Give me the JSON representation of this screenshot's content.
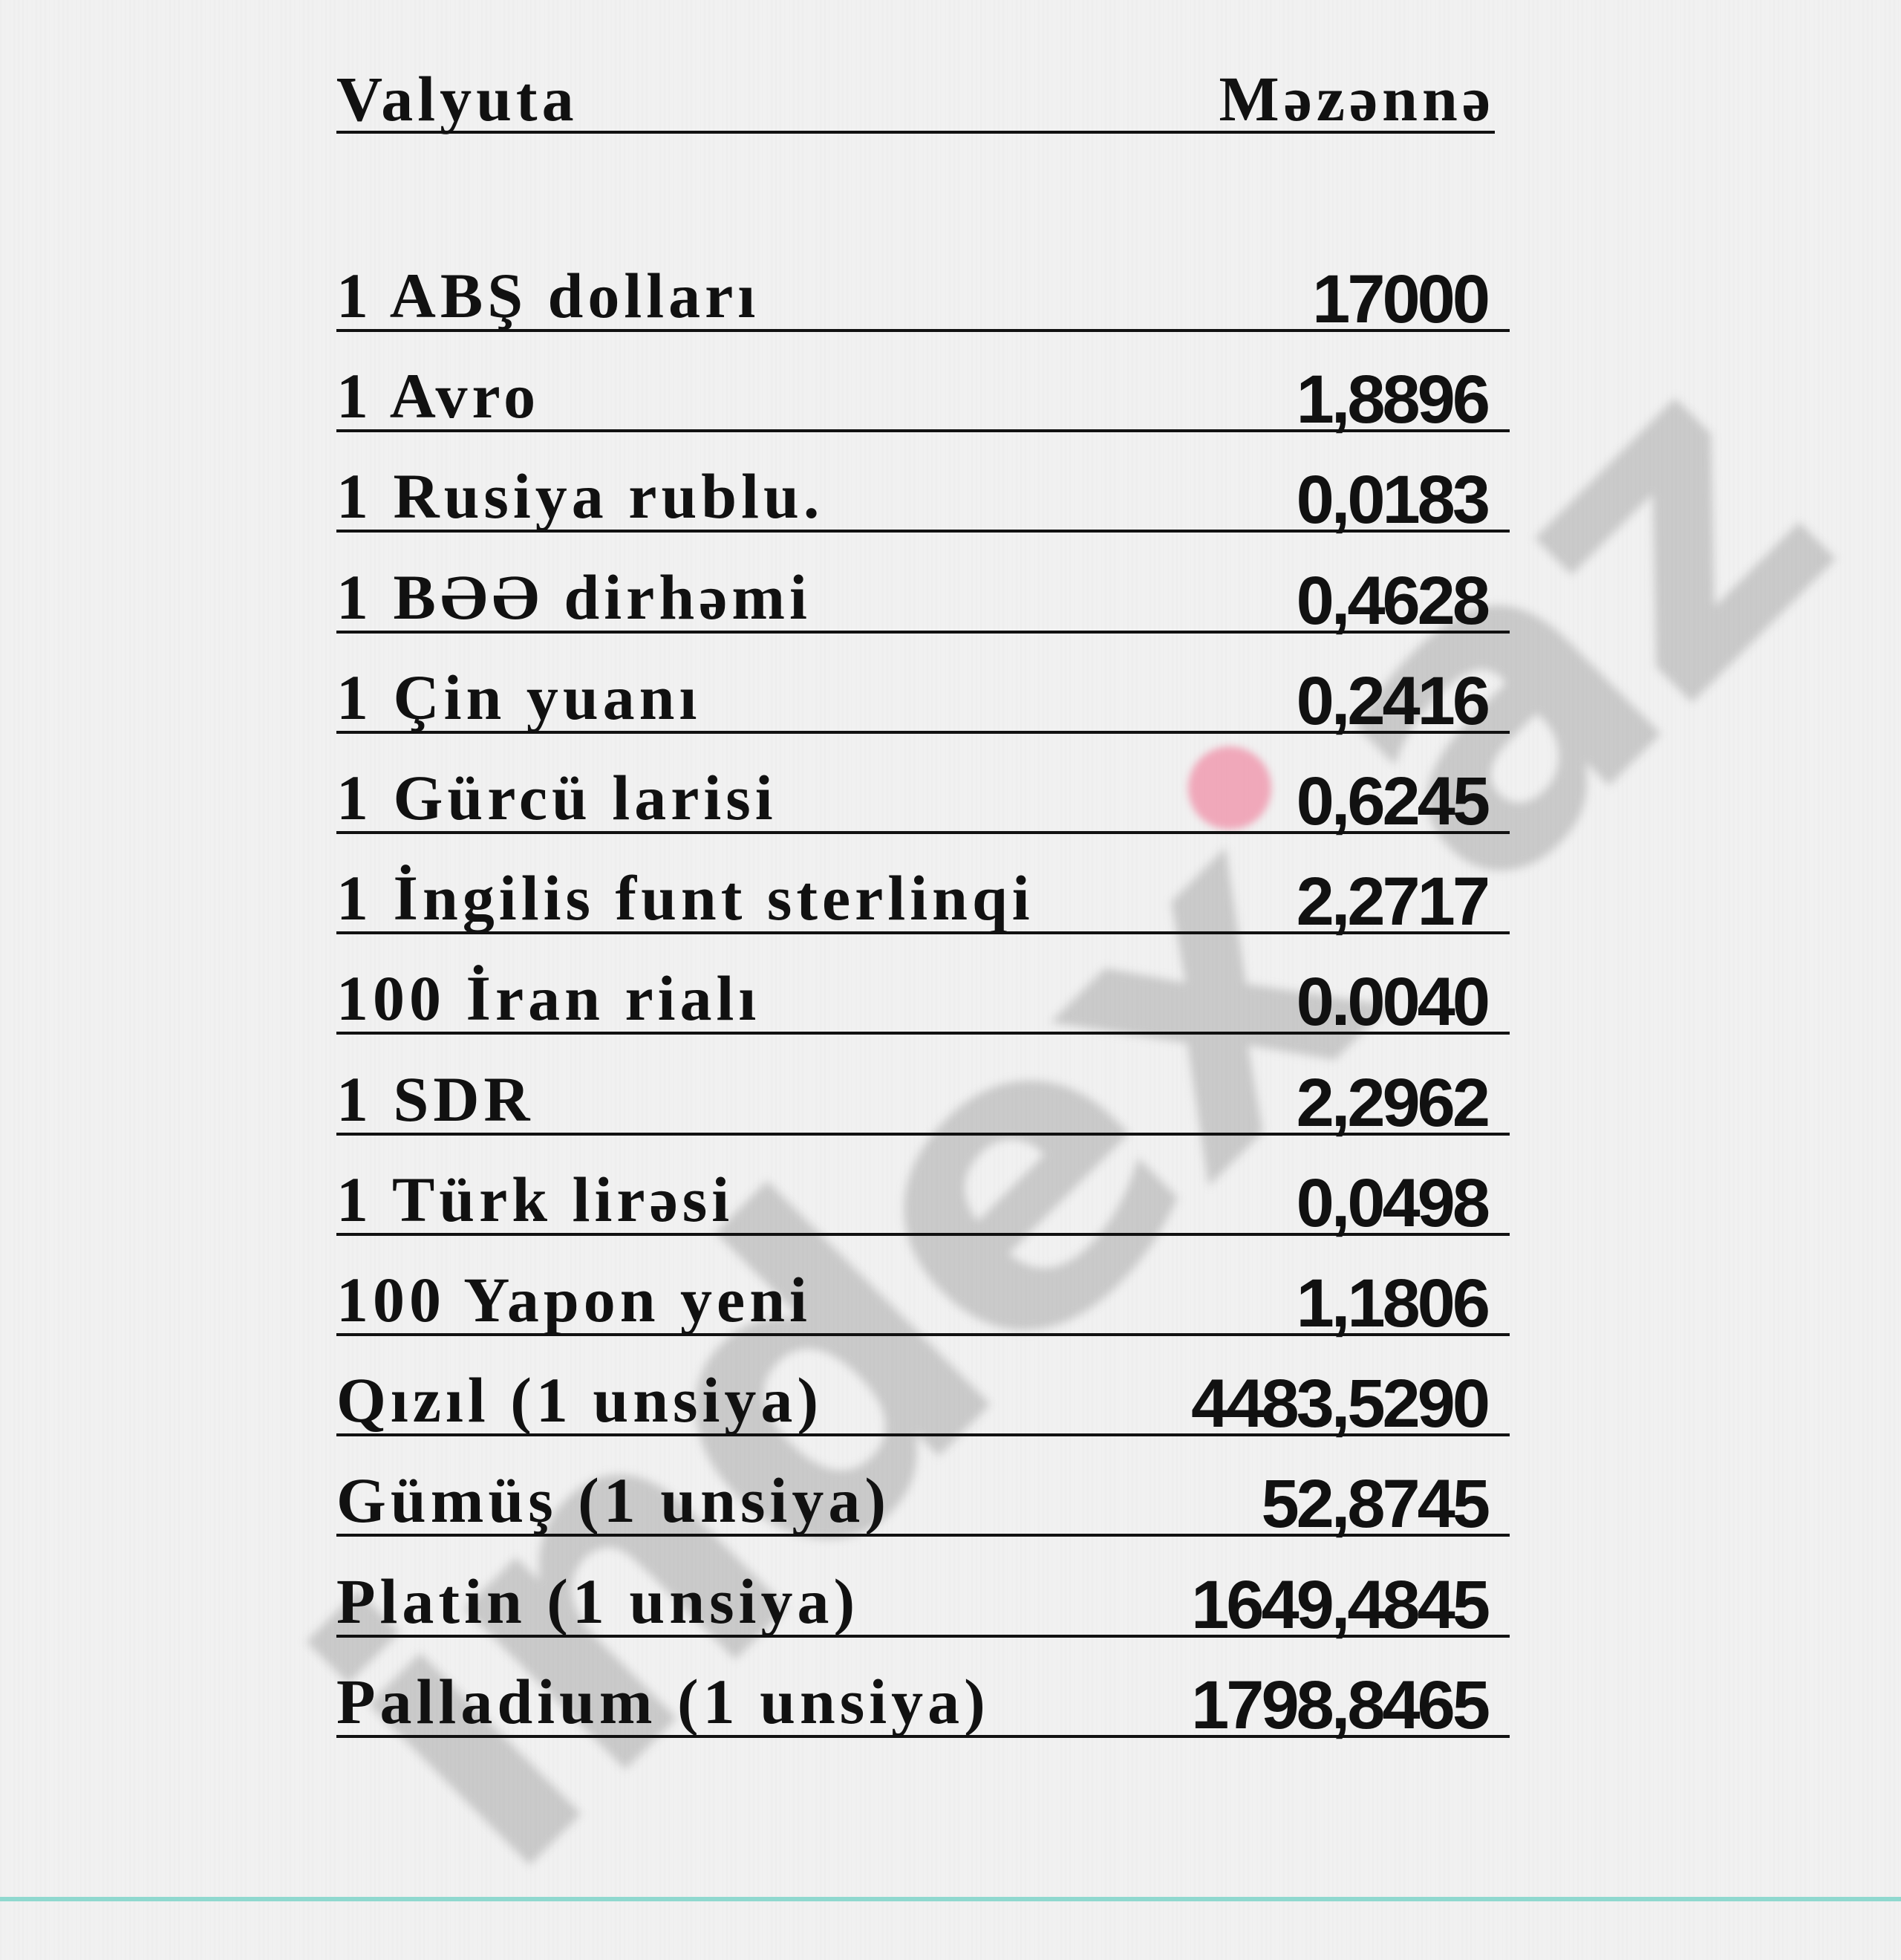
{
  "watermark": {
    "text": "index.az",
    "dot_color": "#f07896"
  },
  "header": {
    "currency": "Valyuta",
    "rate": "Məzənnə"
  },
  "rows": [
    {
      "name": "1 ABŞ dolları",
      "value": "17000"
    },
    {
      "name": "1 Avro",
      "value": "1,8896"
    },
    {
      "name": "1 Rusiya rublu.",
      "value": "0,0183"
    },
    {
      "name": "1 BƏƏ dirhəmi",
      "value": "0,4628"
    },
    {
      "name": "1 Çin yuanı",
      "value": "0,2416"
    },
    {
      "name": "1 Gürcü larisi",
      "value": "0,6245"
    },
    {
      "name": "1 İngilis funt sterlinqi",
      "value": "2,2717"
    },
    {
      "name": "100 İran rialı",
      "value": "0.0040"
    },
    {
      "name": "1 SDR",
      "value": "2,2962"
    },
    {
      "name": "1 Türk lirəsi",
      "value": "0,0498"
    },
    {
      "name": "100 Yapon yeni",
      "value": "1,1806"
    },
    {
      "name": "Qızıl (1 unsiya)",
      "value": "4483,5290"
    },
    {
      "name": "Gümüş (1 unsiya)",
      "value": "52,8745"
    },
    {
      "name": "Platin (1 unsiya)",
      "value": "1649,4845"
    },
    {
      "name": "Palladium (1 unsiya)",
      "value": "1798,8465"
    }
  ]
}
